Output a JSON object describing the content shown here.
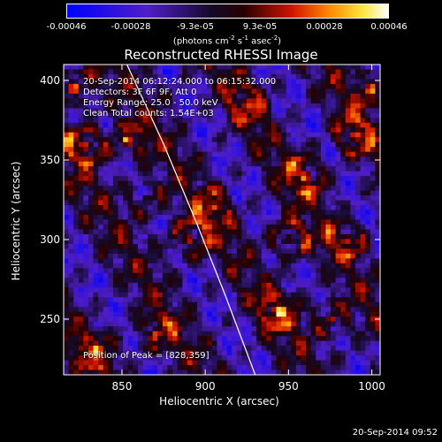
{
  "chart_data": {
    "type": "heatmap",
    "title": "Reconstructed RHESSI Image",
    "xlabel": "Heliocentric X (arcsec)",
    "ylabel": "Heliocentric Y (arcsec)",
    "xlim": [
      815,
      1005
    ],
    "ylim": [
      215,
      410
    ],
    "xticks": [
      850,
      900,
      950,
      1000
    ],
    "yticks": [
      250,
      300,
      350,
      400
    ],
    "colorbar": {
      "ticks": [
        "-0.00046",
        "-0.00028",
        "-9.3e-05",
        "9.3e-05",
        "0.00028",
        "0.00046"
      ],
      "tick_values": [
        -0.00046,
        -0.00028,
        -9.3e-05,
        9.3e-05,
        0.00028,
        0.00046
      ],
      "range": [
        -0.00046,
        0.00046
      ],
      "unit_label": "(photons cm",
      "unit_exp1": "-2",
      "unit_mid": " s",
      "unit_exp2": "-1",
      "unit_mid2": " asec",
      "unit_exp3": "-2",
      "unit_end": ")"
    },
    "annotations": {
      "time_range": "20-Sep-2014 06:12:24.000 to 06:15:32.000",
      "detectors": "Detectors: 3F 6F 9F, Att 0",
      "energy": "Energy Range: 25.0 - 50.0 keV",
      "method": "Clean     Total counts: 1.54E+03",
      "peak": "Position of Peak = [828,359]"
    },
    "limb_curve": [
      [
        853,
        410
      ],
      [
        875,
        360
      ],
      [
        895,
        310
      ],
      [
        912,
        265
      ],
      [
        930,
        215
      ]
    ],
    "bright_sources": [
      {
        "x": 828,
        "y": 359,
        "v": 0.00046
      },
      {
        "x": 822,
        "y": 395,
        "v": 0.0004
      },
      {
        "x": 853,
        "y": 362,
        "v": 0.00036
      },
      {
        "x": 865,
        "y": 325,
        "v": 0.0003
      },
      {
        "x": 890,
        "y": 300,
        "v": 0.0004
      },
      {
        "x": 905,
        "y": 320,
        "v": 0.0003
      },
      {
        "x": 960,
        "y": 340,
        "v": 0.00036
      },
      {
        "x": 950,
        "y": 300,
        "v": 0.0004
      },
      {
        "x": 945,
        "y": 255,
        "v": 0.0004
      },
      {
        "x": 975,
        "y": 250,
        "v": 0.00036
      },
      {
        "x": 990,
        "y": 365,
        "v": 0.00036
      },
      {
        "x": 985,
        "y": 300,
        "v": 0.0003
      },
      {
        "x": 870,
        "y": 240,
        "v": 0.0003
      },
      {
        "x": 835,
        "y": 230,
        "v": 0.00036
      },
      {
        "x": 925,
        "y": 385,
        "v": 0.00028
      },
      {
        "x": 1000,
        "y": 395,
        "v": 0.0003
      }
    ]
  },
  "timestamp": "20-Sep-2014 09:52"
}
